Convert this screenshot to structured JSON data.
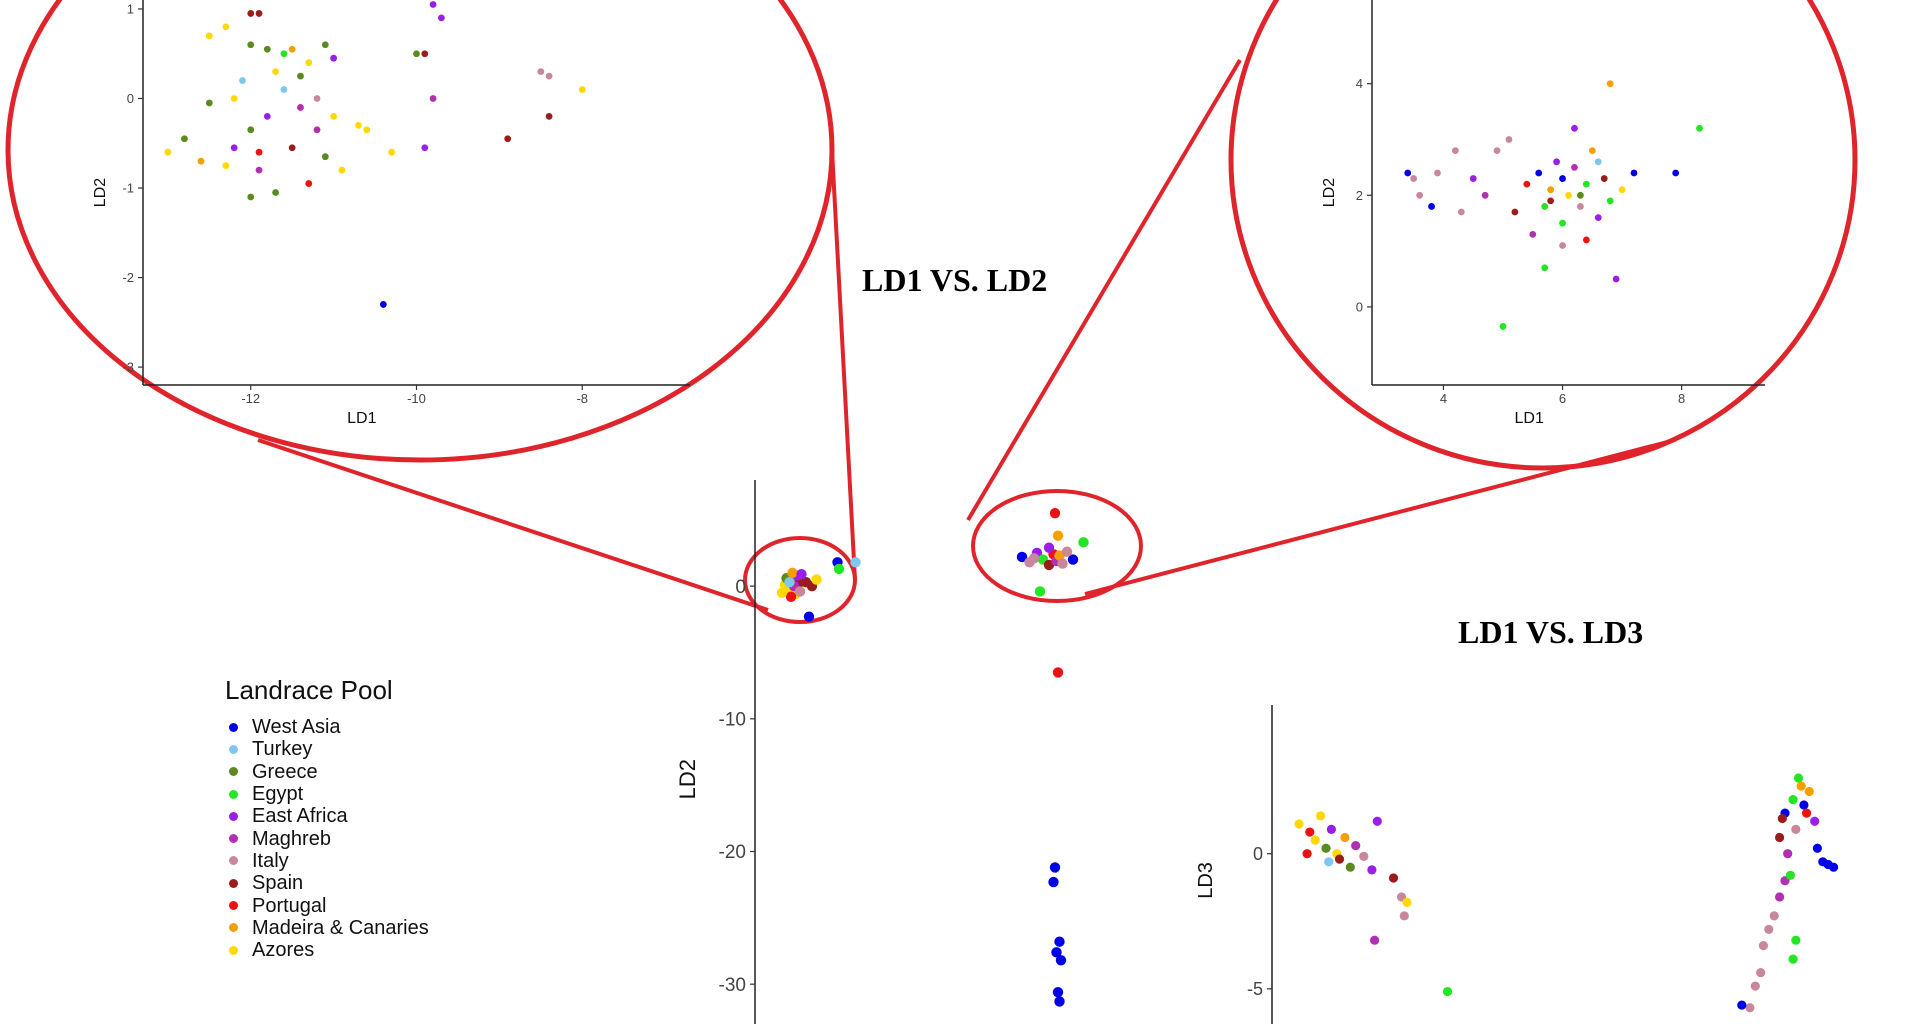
{
  "titles": {
    "ld1_vs_ld2": "LD1 VS. LD2",
    "ld1_vs_ld3": "LD1 VS. LD3"
  },
  "legend": {
    "title": "Landrace Pool",
    "items": [
      {
        "label": "West Asia",
        "color": "#0000e6"
      },
      {
        "label": "Turkey",
        "color": "#7ec8f0"
      },
      {
        "label": "Greece",
        "color": "#5b8a1e"
      },
      {
        "label": "Egypt",
        "color": "#22e622"
      },
      {
        "label": "East Africa",
        "color": "#9b1ee6"
      },
      {
        "label": "Maghreb",
        "color": "#b22eb2"
      },
      {
        "label": "Italy",
        "color": "#c8879a"
      },
      {
        "label": "Spain",
        "color": "#9b1c1c"
      },
      {
        "label": "Portugal",
        "color": "#ee1111"
      },
      {
        "label": "Madeira & Canaries",
        "color": "#f5a000"
      },
      {
        "label": "Azores",
        "color": "#ffd800"
      }
    ]
  },
  "annotation_color": "#e0242b",
  "chart_data": [
    {
      "id": "main-ld1-ld2",
      "type": "scatter",
      "title": "LD1 VS. LD2",
      "xlabel": "",
      "ylabel": "LD2",
      "yticks": [
        0,
        -10,
        -20,
        -30
      ],
      "ylim": [
        -33,
        8
      ],
      "xlim": [
        -14,
        10
      ],
      "points": [
        {
          "x": -12.0,
          "y": 0.1,
          "g": 10
        },
        {
          "x": -11.8,
          "y": -0.3,
          "g": 10
        },
        {
          "x": -11.5,
          "y": 0.5,
          "g": 9
        },
        {
          "x": -11.3,
          "y": -0.6,
          "g": 10
        },
        {
          "x": -11.9,
          "y": 0.6,
          "g": 2
        },
        {
          "x": -11.1,
          "y": 0.2,
          "g": 7
        },
        {
          "x": -11.6,
          "y": -0.8,
          "g": 8
        },
        {
          "x": -11.2,
          "y": 0.8,
          "g": 4
        },
        {
          "x": -11.4,
          "y": 0.0,
          "g": 5
        },
        {
          "x": -11.7,
          "y": 0.3,
          "g": 1
        },
        {
          "x": -12.2,
          "y": -0.5,
          "g": 10
        },
        {
          "x": -11.0,
          "y": -0.4,
          "g": 6
        },
        {
          "x": -11.5,
          "y": 1.0,
          "g": 9
        },
        {
          "x": -10.6,
          "y": 0.3,
          "g": 7
        },
        {
          "x": -10.2,
          "y": 0.0,
          "g": 7
        },
        {
          "x": -9.9,
          "y": 0.5,
          "g": 10
        },
        {
          "x": -10.9,
          "y": 0.9,
          "g": 4
        },
        {
          "x": -10.4,
          "y": -2.3,
          "g": 0
        },
        {
          "x": -8.5,
          "y": 1.8,
          "g": 0
        },
        {
          "x": -8.4,
          "y": 1.3,
          "g": 3
        },
        {
          "x": -7.3,
          "y": 1.8,
          "g": 1
        },
        {
          "x": 3.8,
          "y": 2.2,
          "g": 0
        },
        {
          "x": 4.3,
          "y": 1.8,
          "g": 6
        },
        {
          "x": 4.8,
          "y": 2.5,
          "g": 4
        },
        {
          "x": 5.2,
          "y": 2.0,
          "g": 3
        },
        {
          "x": 5.6,
          "y": 1.6,
          "g": 7
        },
        {
          "x": 5.9,
          "y": 2.4,
          "g": 8
        },
        {
          "x": 6.1,
          "y": 1.9,
          "g": 5
        },
        {
          "x": 6.3,
          "y": 2.3,
          "g": 9
        },
        {
          "x": 6.5,
          "y": 1.7,
          "g": 6
        },
        {
          "x": 6.2,
          "y": 3.8,
          "g": 9
        },
        {
          "x": 6.0,
          "y": 5.5,
          "g": 8
        },
        {
          "x": 7.2,
          "y": 2.0,
          "g": 0
        },
        {
          "x": 7.9,
          "y": 3.3,
          "g": 3
        },
        {
          "x": 5.0,
          "y": -0.4,
          "g": 3
        },
        {
          "x": 6.2,
          "y": -6.5,
          "g": 8
        },
        {
          "x": 5.6,
          "y": 2.9,
          "g": 4
        },
        {
          "x": 6.8,
          "y": 2.6,
          "g": 6
        },
        {
          "x": 4.6,
          "y": 2.1,
          "g": 6
        },
        {
          "x": 6.0,
          "y": -21.2,
          "g": 0
        },
        {
          "x": 5.9,
          "y": -22.3,
          "g": 0
        },
        {
          "x": 6.3,
          "y": -26.8,
          "g": 0
        },
        {
          "x": 6.1,
          "y": -27.6,
          "g": 0
        },
        {
          "x": 6.4,
          "y": -28.2,
          "g": 0
        },
        {
          "x": 6.2,
          "y": -30.6,
          "g": 0
        },
        {
          "x": 6.3,
          "y": -31.3,
          "g": 0
        }
      ]
    },
    {
      "id": "zoom-left",
      "type": "scatter",
      "title": "",
      "xlabel": "LD1",
      "ylabel": "LD2",
      "xticks": [
        -12,
        -10,
        -8
      ],
      "yticks": [
        1,
        0,
        -1,
        -2,
        -3
      ],
      "xlim": [
        -13.3,
        -6.7
      ],
      "ylim": [
        -3.2,
        1.1
      ],
      "points": [
        {
          "x": -12.0,
          "y": 0.6,
          "g": 2
        },
        {
          "x": -11.8,
          "y": 0.55,
          "g": 2
        },
        {
          "x": -12.3,
          "y": 0.8,
          "g": 10
        },
        {
          "x": -11.9,
          "y": 0.95,
          "g": 7
        },
        {
          "x": -11.5,
          "y": 0.55,
          "g": 9
        },
        {
          "x": -11.1,
          "y": 0.6,
          "g": 2
        },
        {
          "x": -11.0,
          "y": 0.45,
          "g": 4
        },
        {
          "x": -11.3,
          "y": 0.4,
          "g": 10
        },
        {
          "x": -12.1,
          "y": 0.2,
          "g": 1
        },
        {
          "x": -11.7,
          "y": 0.3,
          "g": 10
        },
        {
          "x": -11.6,
          "y": 0.1,
          "g": 1
        },
        {
          "x": -12.2,
          "y": 0.0,
          "g": 10
        },
        {
          "x": -12.5,
          "y": -0.05,
          "g": 2
        },
        {
          "x": -11.4,
          "y": -0.1,
          "g": 5
        },
        {
          "x": -11.2,
          "y": 0.0,
          "g": 6
        },
        {
          "x": -11.0,
          "y": -0.2,
          "g": 10
        },
        {
          "x": -10.7,
          "y": -0.3,
          "g": 10
        },
        {
          "x": -12.0,
          "y": -0.35,
          "g": 2
        },
        {
          "x": -12.8,
          "y": -0.45,
          "g": 2
        },
        {
          "x": -13.0,
          "y": -0.6,
          "g": 10
        },
        {
          "x": -12.6,
          "y": -0.7,
          "g": 9
        },
        {
          "x": -12.3,
          "y": -0.75,
          "g": 10
        },
        {
          "x": -11.9,
          "y": -0.8,
          "g": 5
        },
        {
          "x": -11.5,
          "y": -0.55,
          "g": 7
        },
        {
          "x": -11.1,
          "y": -0.65,
          "g": 2
        },
        {
          "x": -10.9,
          "y": -0.8,
          "g": 10
        },
        {
          "x": -11.3,
          "y": -0.95,
          "g": 8
        },
        {
          "x": -11.7,
          "y": -1.05,
          "g": 2
        },
        {
          "x": -12.0,
          "y": -1.1,
          "g": 2
        },
        {
          "x": -12.2,
          "y": -0.55,
          "g": 4
        },
        {
          "x": -11.8,
          "y": -0.2,
          "g": 4
        },
        {
          "x": -11.6,
          "y": 0.5,
          "g": 3
        },
        {
          "x": -10.6,
          "y": -0.35,
          "g": 10
        },
        {
          "x": -10.3,
          "y": -0.6,
          "g": 10
        },
        {
          "x": -10.0,
          "y": 0.5,
          "g": 2
        },
        {
          "x": -9.9,
          "y": 0.5,
          "g": 7
        },
        {
          "x": -9.8,
          "y": 1.05,
          "g": 4
        },
        {
          "x": -9.7,
          "y": 0.9,
          "g": 4
        },
        {
          "x": -9.8,
          "y": 0.0,
          "g": 5
        },
        {
          "x": -9.9,
          "y": -0.55,
          "g": 4
        },
        {
          "x": -12.0,
          "y": 0.95,
          "g": 7
        },
        {
          "x": -12.5,
          "y": 0.7,
          "g": 10
        },
        {
          "x": -10.4,
          "y": -2.3,
          "g": 0
        },
        {
          "x": -8.9,
          "y": -0.45,
          "g": 7
        },
        {
          "x": -8.5,
          "y": 0.3,
          "g": 6
        },
        {
          "x": -8.4,
          "y": 0.25,
          "g": 6
        },
        {
          "x": -8.4,
          "y": -0.2,
          "g": 7
        },
        {
          "x": -8.0,
          "y": 0.1,
          "g": 10
        },
        {
          "x": -11.4,
          "y": 0.25,
          "g": 2
        },
        {
          "x": -11.9,
          "y": -0.6,
          "g": 8
        },
        {
          "x": -11.2,
          "y": -0.35,
          "g": 5
        }
      ]
    },
    {
      "id": "zoom-right",
      "type": "scatter",
      "title": "",
      "xlabel": "LD1",
      "ylabel": "LD2",
      "xticks": [
        4,
        6,
        8
      ],
      "yticks": [
        4,
        2,
        0
      ],
      "xlim": [
        2.8,
        9.4
      ],
      "ylim": [
        -1.4,
        5.5
      ],
      "points": [
        {
          "x": 3.4,
          "y": 2.4,
          "g": 0
        },
        {
          "x": 3.5,
          "y": 2.3,
          "g": 6
        },
        {
          "x": 3.6,
          "y": 2.0,
          "g": 6
        },
        {
          "x": 3.8,
          "y": 1.8,
          "g": 0
        },
        {
          "x": 3.9,
          "y": 2.4,
          "g": 6
        },
        {
          "x": 4.2,
          "y": 2.8,
          "g": 6
        },
        {
          "x": 4.5,
          "y": 2.3,
          "g": 4
        },
        {
          "x": 4.7,
          "y": 2.0,
          "g": 5
        },
        {
          "x": 4.9,
          "y": 2.8,
          "g": 6
        },
        {
          "x": 5.1,
          "y": 3.0,
          "g": 6
        },
        {
          "x": 5.2,
          "y": 1.7,
          "g": 7
        },
        {
          "x": 5.4,
          "y": 2.2,
          "g": 8
        },
        {
          "x": 5.6,
          "y": 2.4,
          "g": 0
        },
        {
          "x": 5.7,
          "y": 1.8,
          "g": 3
        },
        {
          "x": 5.8,
          "y": 2.1,
          "g": 9
        },
        {
          "x": 5.9,
          "y": 2.6,
          "g": 4
        },
        {
          "x": 6.0,
          "y": 1.5,
          "g": 3
        },
        {
          "x": 6.1,
          "y": 2.0,
          "g": 10
        },
        {
          "x": 6.2,
          "y": 2.5,
          "g": 5
        },
        {
          "x": 6.3,
          "y": 1.8,
          "g": 6
        },
        {
          "x": 6.4,
          "y": 2.2,
          "g": 3
        },
        {
          "x": 6.5,
          "y": 2.8,
          "g": 9
        },
        {
          "x": 6.6,
          "y": 1.6,
          "g": 4
        },
        {
          "x": 6.7,
          "y": 2.3,
          "g": 7
        },
        {
          "x": 6.8,
          "y": 1.9,
          "g": 3
        },
        {
          "x": 7.0,
          "y": 2.1,
          "g": 10
        },
        {
          "x": 7.2,
          "y": 2.4,
          "g": 0
        },
        {
          "x": 7.9,
          "y": 2.4,
          "g": 0
        },
        {
          "x": 6.8,
          "y": 4.0,
          "g": 9
        },
        {
          "x": 8.3,
          "y": 3.2,
          "g": 3
        },
        {
          "x": 5.0,
          "y": -0.35,
          "g": 3
        },
        {
          "x": 5.7,
          "y": 0.7,
          "g": 3
        },
        {
          "x": 6.2,
          "y": 3.2,
          "g": 4
        },
        {
          "x": 6.0,
          "y": 1.1,
          "g": 6
        },
        {
          "x": 6.9,
          "y": 0.5,
          "g": 4
        },
        {
          "x": 6.4,
          "y": 1.2,
          "g": 8
        },
        {
          "x": 5.5,
          "y": 1.3,
          "g": 5
        },
        {
          "x": 6.6,
          "y": 2.6,
          "g": 1
        },
        {
          "x": 6.0,
          "y": 2.3,
          "g": 0
        },
        {
          "x": 6.3,
          "y": 2.0,
          "g": 2
        },
        {
          "x": 5.8,
          "y": 1.9,
          "g": 7
        },
        {
          "x": 4.3,
          "y": 1.7,
          "g": 6
        }
      ]
    },
    {
      "id": "main-ld1-ld3",
      "type": "scatter",
      "title": "LD1 VS. LD3",
      "xlabel": "",
      "ylabel": "LD3",
      "yticks": [
        0,
        -5
      ],
      "xlim": [
        -14,
        10
      ],
      "ylim": [
        -6.3,
        5.5
      ],
      "points": [
        {
          "x": -13.0,
          "y": 1.1,
          "g": 10
        },
        {
          "x": -12.6,
          "y": 0.8,
          "g": 8
        },
        {
          "x": -12.4,
          "y": 0.5,
          "g": 10
        },
        {
          "x": -12.2,
          "y": 1.4,
          "g": 10
        },
        {
          "x": -12.0,
          "y": 0.2,
          "g": 2
        },
        {
          "x": -11.8,
          "y": 0.9,
          "g": 4
        },
        {
          "x": -11.6,
          "y": 0.0,
          "g": 10
        },
        {
          "x": -11.5,
          "y": -0.2,
          "g": 7
        },
        {
          "x": -11.3,
          "y": 0.6,
          "g": 9
        },
        {
          "x": -11.1,
          "y": -0.5,
          "g": 2
        },
        {
          "x": -10.9,
          "y": 0.3,
          "g": 5
        },
        {
          "x": -10.6,
          "y": -0.1,
          "g": 6
        },
        {
          "x": -10.3,
          "y": -0.6,
          "g": 4
        },
        {
          "x": -10.1,
          "y": 1.2,
          "g": 4
        },
        {
          "x": -9.5,
          "y": -0.9,
          "g": 7
        },
        {
          "x": -9.2,
          "y": -1.6,
          "g": 6
        },
        {
          "x": -9.0,
          "y": -1.8,
          "g": 10
        },
        {
          "x": -9.1,
          "y": -2.3,
          "g": 6
        },
        {
          "x": -10.2,
          "y": -3.2,
          "g": 5
        },
        {
          "x": -12.7,
          "y": 0.0,
          "g": 8
        },
        {
          "x": -11.9,
          "y": -0.3,
          "g": 1
        },
        {
          "x": -7.5,
          "y": -5.1,
          "g": 3
        },
        {
          "x": 5.0,
          "y": 1.5,
          "g": 0
        },
        {
          "x": 5.3,
          "y": 2.0,
          "g": 3
        },
        {
          "x": 5.5,
          "y": 2.8,
          "g": 3
        },
        {
          "x": 5.7,
          "y": 1.8,
          "g": 0
        },
        {
          "x": 5.9,
          "y": 2.3,
          "g": 9
        },
        {
          "x": 6.1,
          "y": 1.2,
          "g": 4
        },
        {
          "x": 6.2,
          "y": 0.2,
          "g": 0
        },
        {
          "x": 6.4,
          "y": -0.3,
          "g": 0
        },
        {
          "x": 6.6,
          "y": -0.4,
          "g": 0
        },
        {
          "x": 6.8,
          "y": -0.5,
          "g": 0
        },
        {
          "x": 5.1,
          "y": 0.0,
          "g": 5
        },
        {
          "x": 4.8,
          "y": 0.6,
          "g": 7
        },
        {
          "x": 5.4,
          "y": 0.9,
          "g": 6
        },
        {
          "x": 5.0,
          "y": -1.0,
          "g": 5
        },
        {
          "x": 4.8,
          "y": -1.6,
          "g": 5
        },
        {
          "x": 4.6,
          "y": -2.3,
          "g": 6
        },
        {
          "x": 4.4,
          "y": -2.8,
          "g": 6
        },
        {
          "x": 4.2,
          "y": -3.4,
          "g": 6
        },
        {
          "x": 4.1,
          "y": -4.4,
          "g": 6
        },
        {
          "x": 3.9,
          "y": -4.9,
          "g": 6
        },
        {
          "x": 3.7,
          "y": -5.7,
          "g": 6
        },
        {
          "x": 3.4,
          "y": -5.6,
          "g": 0
        },
        {
          "x": 5.2,
          "y": -0.8,
          "g": 3
        },
        {
          "x": 5.4,
          "y": -3.2,
          "g": 3
        },
        {
          "x": 5.3,
          "y": -3.9,
          "g": 3
        },
        {
          "x": 5.8,
          "y": 1.5,
          "g": 8
        },
        {
          "x": 5.6,
          "y": 2.5,
          "g": 9
        },
        {
          "x": 4.9,
          "y": 1.3,
          "g": 7
        }
      ]
    }
  ]
}
